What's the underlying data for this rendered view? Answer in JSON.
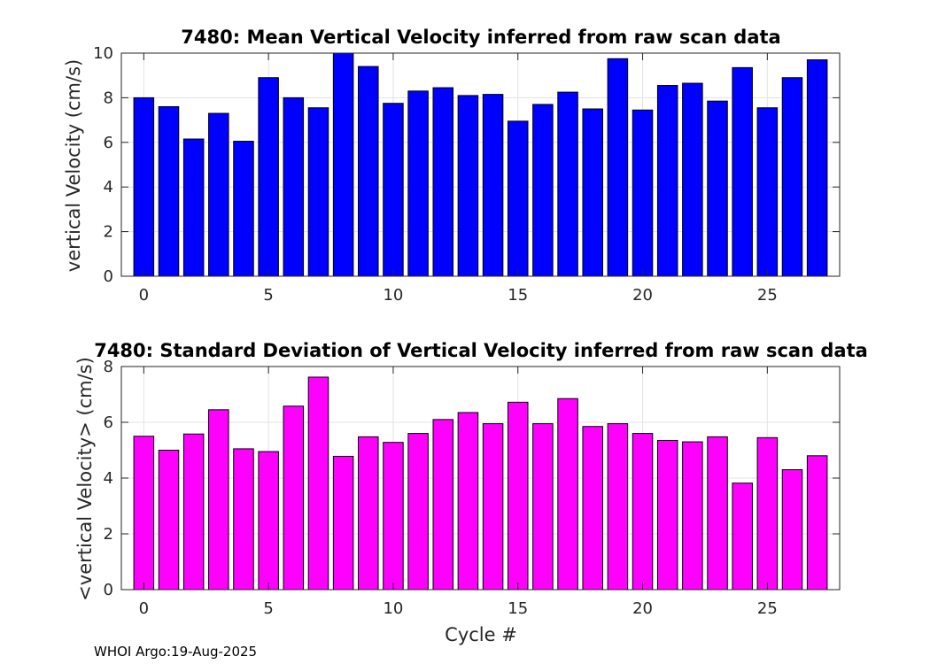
{
  "footer": "WHOI Argo:19-Aug-2025",
  "chart_data": [
    {
      "type": "bar",
      "title": "7480: Mean Vertical Velocity inferred from raw scan data",
      "xlabel": "",
      "ylabel": "vertical Velocity (cm/s)",
      "color": "#0000ff",
      "x": [
        0,
        1,
        2,
        3,
        4,
        5,
        6,
        7,
        8,
        9,
        10,
        11,
        12,
        13,
        14,
        15,
        16,
        17,
        18,
        19,
        20,
        21,
        22,
        23,
        24,
        25,
        26,
        27
      ],
      "values": [
        8.0,
        7.6,
        6.15,
        7.3,
        6.05,
        8.9,
        8.0,
        7.55,
        10.2,
        9.4,
        7.75,
        8.3,
        8.45,
        8.1,
        8.15,
        6.95,
        7.7,
        8.25,
        7.5,
        9.75,
        7.45,
        8.55,
        8.65,
        7.85,
        9.35,
        7.55,
        8.9,
        9.7
      ],
      "xlim": [
        -0.9,
        27.9
      ],
      "ylim": [
        0,
        10
      ],
      "xticks": [
        0,
        5,
        10,
        15,
        20,
        25
      ],
      "yticks": [
        0,
        2,
        4,
        6,
        8,
        10
      ],
      "grid": true
    },
    {
      "type": "bar",
      "title": "7480: Standard Deviation of Vertical Velocity inferred from raw scan data",
      "xlabel": "Cycle #",
      "ylabel": "<vertical Velocity> (cm/s)",
      "color": "#ff00ff",
      "x": [
        0,
        1,
        2,
        3,
        4,
        5,
        6,
        7,
        8,
        9,
        10,
        11,
        12,
        13,
        14,
        15,
        16,
        17,
        18,
        19,
        20,
        21,
        22,
        23,
        24,
        25,
        26,
        27
      ],
      "values": [
        5.5,
        5.0,
        5.58,
        6.45,
        5.05,
        4.95,
        6.58,
        7.62,
        4.78,
        5.48,
        5.28,
        5.6,
        6.1,
        6.35,
        5.95,
        6.72,
        5.95,
        6.85,
        5.85,
        5.95,
        5.6,
        5.35,
        5.3,
        5.48,
        3.82,
        5.45,
        4.3,
        4.8
      ],
      "xlim": [
        -0.9,
        27.9
      ],
      "ylim": [
        0,
        8
      ],
      "xticks": [
        0,
        5,
        10,
        15,
        20,
        25
      ],
      "yticks": [
        0,
        2,
        4,
        6,
        8
      ],
      "grid": true
    }
  ]
}
